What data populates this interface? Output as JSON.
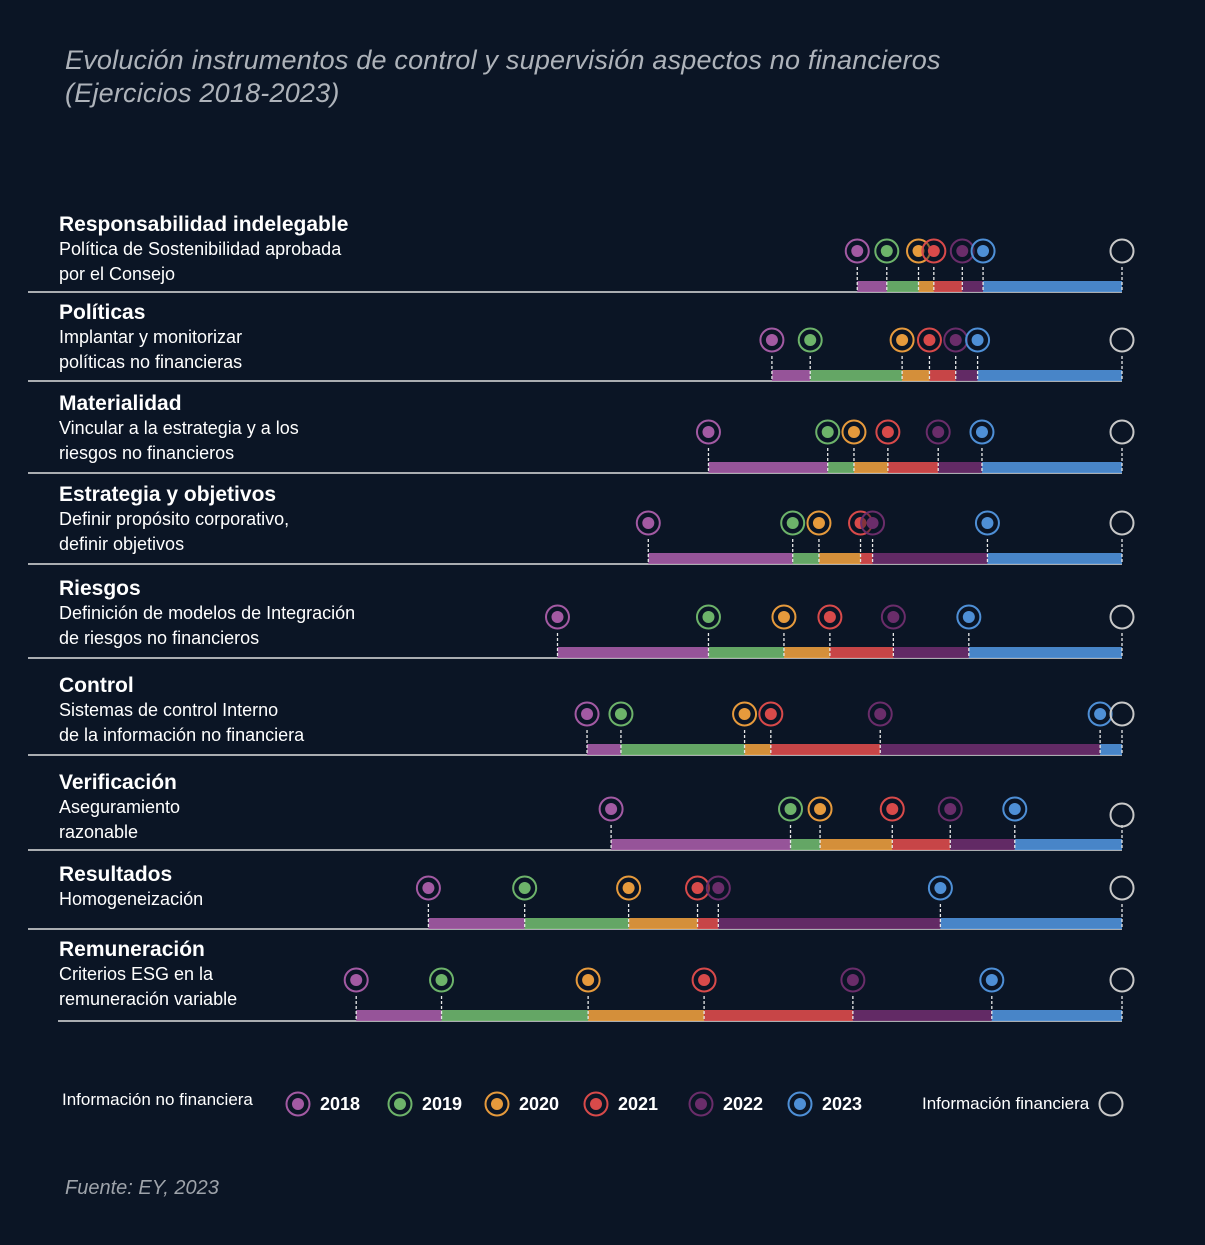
{
  "title_line1": "Evolución instrumentos de control y supervisión aspectos no financieros",
  "title_line2": "(Ejercicios 2018-2023)",
  "source": "Fuente: EY, 2023",
  "colors": {
    "background": "#0b1525",
    "2018": "#a35aa3",
    "2019": "#6db36a",
    "2020": "#e69a3c",
    "2021": "#d84a4a",
    "2022": "#6a2d6a",
    "2023": "#4e8fd6",
    "financiera": "#c8c8c8"
  },
  "legend": {
    "non_financial_label": "Información no financiera",
    "financial_label": "Información financiera",
    "years": [
      "2018",
      "2019",
      "2020",
      "2021",
      "2022",
      "2023"
    ]
  },
  "chart_data": {
    "type": "timeline",
    "scale": "percent of progress toward financial-information level (100)",
    "series_years": [
      "2018",
      "2019",
      "2020",
      "2021",
      "2022",
      "2023"
    ],
    "rows": [
      {
        "title": "Responsabilidad indelegable",
        "desc": [
          "Política de Sostenibilidad aprobada",
          "por el Consejo"
        ],
        "values": [
          75.8,
          78.5,
          81.4,
          82.8,
          85.4,
          87.3
        ]
      },
      {
        "title": "Políticas",
        "desc": [
          "Implantar y monitorizar",
          "políticas no financieras"
        ],
        "values": [
          68.0,
          71.5,
          79.9,
          82.4,
          84.8,
          86.8
        ]
      },
      {
        "title": "Materialidad",
        "desc": [
          "Vincular a la estrategia y a los",
          "riesgos no financieros"
        ],
        "values": [
          62.2,
          73.1,
          75.5,
          78.6,
          83.2,
          87.2
        ]
      },
      {
        "title": "Estrategia y objetivos",
        "desc": [
          "Definir propósito corporativo,",
          "definir objetivos"
        ],
        "values": [
          56.7,
          69.9,
          72.3,
          76.1,
          77.2,
          87.7
        ]
      },
      {
        "title": "Riesgos",
        "desc": [
          "Definición de modelos de Integración",
          "de riesgos no financieros"
        ],
        "values": [
          48.4,
          62.2,
          69.1,
          73.3,
          79.1,
          86.0
        ]
      },
      {
        "title": "Control",
        "desc": [
          "Sistemas de control Interno",
          "de la información no financiera"
        ],
        "values": [
          51.1,
          54.2,
          65.5,
          67.9,
          77.9,
          98.0
        ]
      },
      {
        "title": "Verificación",
        "desc": [
          "Aseguramiento",
          "razonable"
        ],
        "values": [
          53.3,
          69.7,
          72.4,
          79.0,
          84.3,
          90.2
        ]
      },
      {
        "title": "Resultados",
        "desc": [
          "Homogeneización"
        ],
        "values": [
          36.6,
          45.4,
          54.9,
          61.2,
          63.1,
          83.4
        ]
      },
      {
        "title": "Remuneración",
        "desc": [
          "Criterios ESG en la",
          "remuneración variable"
        ],
        "values": [
          30.0,
          37.8,
          51.2,
          61.8,
          75.4,
          88.1
        ]
      }
    ],
    "financial_value": 100
  }
}
